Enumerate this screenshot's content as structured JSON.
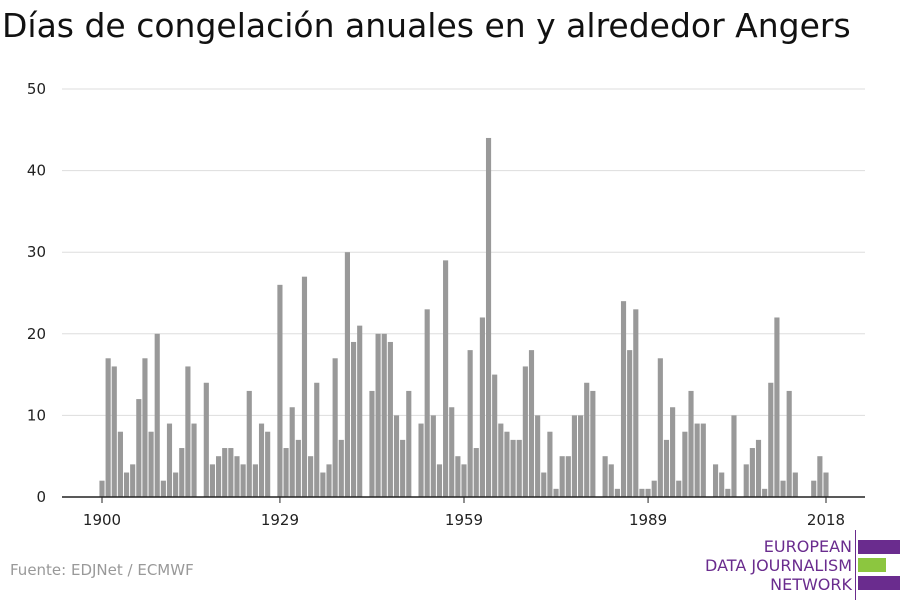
{
  "title": "Días de congelación anuales en y alrededor Angers",
  "source": "Fuente: EDJNet / ECMWF",
  "logo": {
    "line1": "EUROPEAN",
    "line2": "DATA JOURNALISM",
    "line3": "NETWORK",
    "colors": {
      "purple": "#6a2c8e",
      "green": "#8cc63f"
    }
  },
  "colors": {
    "bar": "#999999",
    "grid": "#dddddd",
    "axis": "#222222",
    "text": "#222222"
  },
  "chart_data": {
    "type": "bar",
    "title": "Días de congelación anuales en y alrededor Angers",
    "xlabel": "",
    "ylabel": "",
    "ylim": [
      0,
      50
    ],
    "y_ticks": [
      0,
      10,
      20,
      30,
      40,
      50
    ],
    "x_ticks": [
      1900,
      1929,
      1959,
      1989,
      2018
    ],
    "grid": "horizontal",
    "x": [
      1900,
      1901,
      1902,
      1903,
      1904,
      1905,
      1906,
      1907,
      1908,
      1909,
      1910,
      1911,
      1912,
      1913,
      1914,
      1915,
      1916,
      1917,
      1918,
      1919,
      1920,
      1921,
      1922,
      1923,
      1924,
      1925,
      1926,
      1927,
      1928,
      1929,
      1930,
      1931,
      1932,
      1933,
      1934,
      1935,
      1936,
      1937,
      1938,
      1939,
      1940,
      1941,
      1942,
      1943,
      1944,
      1945,
      1946,
      1947,
      1948,
      1949,
      1950,
      1951,
      1952,
      1953,
      1954,
      1955,
      1956,
      1957,
      1958,
      1959,
      1960,
      1961,
      1962,
      1963,
      1964,
      1965,
      1966,
      1967,
      1968,
      1969,
      1970,
      1971,
      1972,
      1973,
      1974,
      1975,
      1976,
      1977,
      1978,
      1979,
      1980,
      1981,
      1982,
      1983,
      1984,
      1985,
      1986,
      1987,
      1988,
      1989,
      1990,
      1991,
      1992,
      1993,
      1994,
      1995,
      1996,
      1997,
      1998,
      1999,
      2000,
      2001,
      2002,
      2003,
      2004,
      2005,
      2006,
      2007,
      2008,
      2009,
      2010,
      2011,
      2012,
      2013,
      2014,
      2015,
      2016,
      2017,
      2018
    ],
    "values": [
      2,
      17,
      16,
      8,
      3,
      4,
      12,
      17,
      8,
      20,
      2,
      9,
      3,
      6,
      16,
      9,
      0,
      14,
      4,
      5,
      6,
      6,
      5,
      4,
      13,
      4,
      9,
      8,
      0,
      26,
      6,
      11,
      7,
      27,
      5,
      14,
      3,
      4,
      17,
      7,
      30,
      19,
      21,
      0,
      13,
      20,
      20,
      19,
      10,
      7,
      13,
      0,
      9,
      23,
      10,
      4,
      29,
      11,
      5,
      4,
      18,
      6,
      22,
      44,
      15,
      9,
      8,
      7,
      7,
      16,
      18,
      10,
      3,
      8,
      1,
      5,
      5,
      10,
      10,
      14,
      13,
      0,
      5,
      4,
      1,
      24,
      18,
      23,
      1,
      1,
      2,
      17,
      7,
      11,
      2,
      8,
      13,
      9,
      9,
      0,
      4,
      3,
      1,
      10,
      0,
      4,
      6,
      7,
      1,
      14,
      22,
      2,
      13,
      3,
      0,
      0,
      2,
      5,
      3
    ]
  }
}
